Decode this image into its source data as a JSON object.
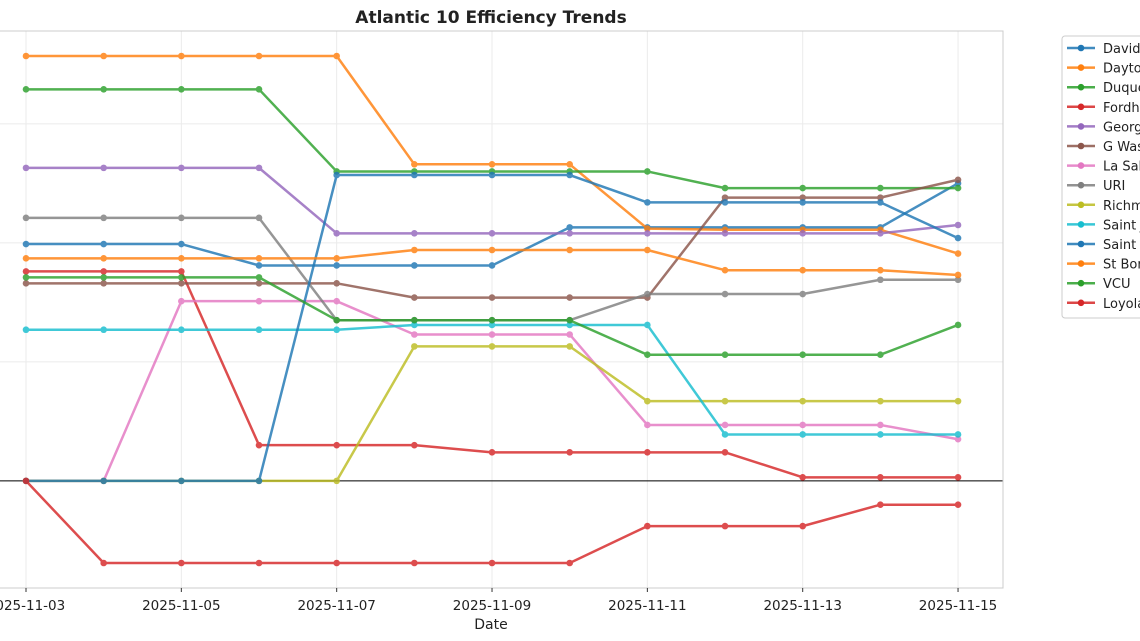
{
  "chart_data": {
    "type": "line",
    "title": "Atlantic 10 Efficiency Trends",
    "xlabel": "Date",
    "ylabel": "",
    "x": [
      "2025-11-03",
      "2025-11-04",
      "2025-11-05",
      "2025-11-06",
      "2025-11-07",
      "2025-11-08",
      "2025-11-09",
      "2025-11-10",
      "2025-11-11",
      "2025-11-12",
      "2025-11-13",
      "2025-11-14",
      "2025-11-15"
    ],
    "x_tick_labels": [
      "2025-11-03",
      "2025-11-05",
      "2025-11-07",
      "2025-11-09",
      "2025-11-11",
      "2025-11-13",
      "2025-11-15"
    ],
    "ylim": [
      -9.0,
      37.8
    ],
    "y_gridlines": [
      0,
      10,
      20,
      30
    ],
    "zero_line": true,
    "grid": true,
    "legend_placement": "outside-right",
    "series": [
      {
        "name": "Davidson",
        "color": "#1f77b4",
        "values": [
          19.9,
          19.9,
          19.9,
          18.1,
          18.1,
          18.1,
          18.1,
          21.3,
          21.3,
          21.3,
          21.3,
          21.3,
          25.0
        ]
      },
      {
        "name": "Dayton",
        "color": "#ff7f0e",
        "values": [
          35.7,
          35.7,
          35.7,
          35.7,
          35.7,
          26.6,
          26.6,
          26.6,
          21.2,
          21.1,
          21.1,
          21.1,
          19.1
        ]
      },
      {
        "name": "Duquesne",
        "color": "#2ca02c",
        "values": [
          32.9,
          32.9,
          32.9,
          32.9,
          26.0,
          26.0,
          26.0,
          26.0,
          26.0,
          24.6,
          24.6,
          24.6,
          24.6
        ]
      },
      {
        "name": "Fordham",
        "color": "#d62728",
        "values": [
          17.6,
          17.6,
          17.6,
          3.0,
          3.0,
          3.0,
          2.4,
          2.4,
          2.4,
          2.4,
          0.3,
          0.3,
          0.3
        ]
      },
      {
        "name": "George Mason",
        "color": "#9467bd",
        "values": [
          26.3,
          26.3,
          26.3,
          26.3,
          20.8,
          20.8,
          20.8,
          20.8,
          20.8,
          20.8,
          20.8,
          20.8,
          21.5
        ]
      },
      {
        "name": "G Washington",
        "color": "#8c564b",
        "values": [
          16.6,
          16.6,
          16.6,
          16.6,
          16.6,
          15.4,
          15.4,
          15.4,
          15.4,
          23.8,
          23.8,
          23.8,
          25.3
        ]
      },
      {
        "name": "La Salle",
        "color": "#e377c2",
        "values": [
          0,
          0,
          15.1,
          15.1,
          15.1,
          12.3,
          12.3,
          12.3,
          4.7,
          4.7,
          4.7,
          4.7,
          3.5
        ]
      },
      {
        "name": "URI",
        "color": "#7f7f7f",
        "values": [
          22.1,
          22.1,
          22.1,
          22.1,
          13.5,
          13.5,
          13.5,
          13.5,
          15.7,
          15.7,
          15.7,
          16.9,
          16.9
        ]
      },
      {
        "name": "Richmond",
        "color": "#bcbd22",
        "values": [
          0,
          0,
          0,
          0,
          0,
          11.3,
          11.3,
          11.3,
          6.7,
          6.7,
          6.7,
          6.7,
          6.7
        ]
      },
      {
        "name": "Saint Joseph's",
        "color": "#17becf",
        "values": [
          12.7,
          12.7,
          12.7,
          12.7,
          12.7,
          13.1,
          13.1,
          13.1,
          13.1,
          3.9,
          3.9,
          3.9,
          3.9
        ]
      },
      {
        "name": "Saint Louis",
        "color": "#1f77b4",
        "values": [
          0,
          0,
          0,
          0,
          25.7,
          25.7,
          25.7,
          25.7,
          23.4,
          23.4,
          23.4,
          23.4,
          20.4
        ]
      },
      {
        "name": "St Bonaventure",
        "color": "#ff7f0e",
        "values": [
          18.7,
          18.7,
          18.7,
          18.7,
          18.7,
          19.4,
          19.4,
          19.4,
          19.4,
          17.7,
          17.7,
          17.7,
          17.3
        ]
      },
      {
        "name": "VCU",
        "color": "#2ca02c",
        "values": [
          17.1,
          17.1,
          17.1,
          17.1,
          13.5,
          13.5,
          13.5,
          13.5,
          10.6,
          10.6,
          10.6,
          10.6,
          13.1
        ]
      },
      {
        "name": "Loyola Chicago",
        "color": "#d62728",
        "values": [
          0,
          -6.9,
          -6.9,
          -6.9,
          -6.9,
          -6.9,
          -6.9,
          -6.9,
          -3.8,
          -3.8,
          -3.8,
          -2.0,
          -2.0
        ]
      }
    ]
  }
}
